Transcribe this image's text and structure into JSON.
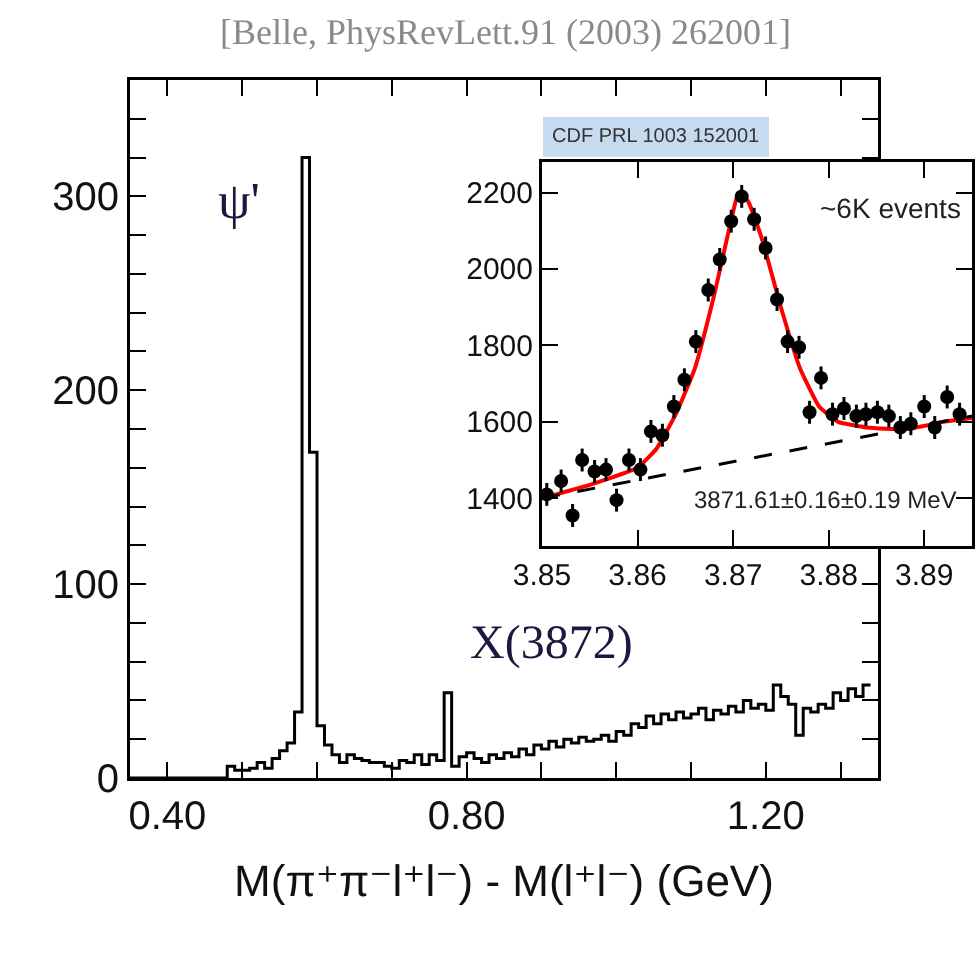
{
  "chart_data": [
    {
      "type": "histogram",
      "xlabel": "M(π⁺π⁻l⁺l⁻) - M(l⁺l⁻) (GeV)",
      "color": "#000000",
      "annotations": [
        "[Belle, PhysRevLett.91 (2003) 262001]",
        "ψ'",
        "X(3872)"
      ],
      "bins": [
        0.35,
        0.36,
        0.37,
        0.38,
        0.39,
        0.4,
        0.41,
        0.42,
        0.43,
        0.44,
        0.45,
        0.46,
        0.47,
        0.48,
        0.49,
        0.5,
        0.51,
        0.52,
        0.53,
        0.54,
        0.55,
        0.56,
        0.57,
        0.58,
        0.59,
        0.6,
        0.61,
        0.62,
        0.63,
        0.64,
        0.65,
        0.66,
        0.67,
        0.68,
        0.69,
        0.7,
        0.71,
        0.72,
        0.73,
        0.74,
        0.75,
        0.76,
        0.77,
        0.78,
        0.79,
        0.8,
        0.81,
        0.82,
        0.83,
        0.84,
        0.85,
        0.86,
        0.87,
        0.88,
        0.89,
        0.9,
        0.91,
        0.92,
        0.93,
        0.94,
        0.95,
        0.96,
        0.97,
        0.98,
        0.99,
        1.0,
        1.01,
        1.02,
        1.03,
        1.04,
        1.05,
        1.06,
        1.07,
        1.08,
        1.09,
        1.1,
        1.11,
        1.12,
        1.13,
        1.14,
        1.15,
        1.16,
        1.17,
        1.18,
        1.19,
        1.2,
        1.21,
        1.22,
        1.23,
        1.24,
        1.25,
        1.26,
        1.27,
        1.28,
        1.29,
        1.3,
        1.31,
        1.32,
        1.33,
        1.34
      ],
      "values": [
        0,
        0,
        0,
        0,
        0,
        0,
        0,
        0,
        0,
        0,
        0,
        0,
        0,
        6,
        4,
        4,
        5,
        8,
        5,
        10,
        14,
        18,
        34,
        320,
        168,
        27,
        17,
        12,
        8,
        12,
        10,
        9,
        8,
        8,
        6,
        5,
        9,
        8,
        12,
        7,
        12,
        9,
        44,
        6,
        11,
        13,
        10,
        8,
        12,
        10,
        13,
        11,
        15,
        12,
        17,
        15,
        19,
        16,
        20,
        18,
        21,
        19,
        20,
        22,
        19,
        24,
        22,
        28,
        26,
        32,
        28,
        33,
        30,
        34,
        31,
        33,
        36,
        30,
        35,
        33,
        37,
        34,
        40,
        36,
        38,
        35,
        48,
        42,
        38,
        22,
        36,
        34,
        38,
        36,
        44,
        40,
        46,
        42,
        48
      ],
      "xlim": [
        0.35,
        1.35
      ],
      "xticks": [
        {
          "value": 0.4,
          "label": "0.40"
        },
        {
          "value": 0.5,
          "label": null
        },
        {
          "value": 0.6,
          "label": null
        },
        {
          "value": 0.7,
          "label": null
        },
        {
          "value": 0.8,
          "label": "0.80"
        },
        {
          "value": 0.9,
          "label": null
        },
        {
          "value": 1.0,
          "label": null
        },
        {
          "value": 1.1,
          "label": null
        },
        {
          "value": 1.2,
          "label": "1.20"
        },
        {
          "value": 1.3,
          "label": null
        }
      ],
      "ylim": [
        0,
        360
      ],
      "yticks": [
        0,
        {
          "value": 20,
          "label": null
        },
        {
          "value": 40,
          "label": null
        },
        {
          "value": 60,
          "label": null
        },
        {
          "value": 80,
          "label": null
        },
        100,
        {
          "value": 120,
          "label": null
        },
        {
          "value": 140,
          "label": null
        },
        {
          "value": 160,
          "label": null
        },
        {
          "value": 180,
          "label": null
        },
        200,
        {
          "value": 220,
          "label": null
        },
        {
          "value": 240,
          "label": null
        },
        {
          "value": 260,
          "label": null
        },
        {
          "value": 280,
          "label": null
        },
        300,
        {
          "value": 320,
          "label": null
        },
        {
          "value": 340,
          "label": null
        }
      ]
    },
    {
      "type": "scatter",
      "annotations": [
        "CDF PRL 1003 152001",
        "~6K events",
        "3871.61±0.16±0.19 MeV"
      ],
      "xlim": [
        3.85,
        3.895
      ],
      "xticks": [
        3.85,
        3.86,
        3.87,
        3.88,
        3.89
      ],
      "ylim": [
        1275,
        2280
      ],
      "yticks": [
        1400,
        1600,
        1800,
        2000,
        2200
      ],
      "series": [
        {
          "marker": "circle",
          "color": "#000000",
          "x": [
            3.8505,
            3.852,
            3.8532,
            3.8542,
            3.8555,
            3.8567,
            3.8578,
            3.8591,
            3.8603,
            3.8614,
            3.8626,
            3.8638,
            3.8649,
            3.8661,
            3.8674,
            3.8686,
            3.8698,
            3.8709,
            3.8722,
            3.8734,
            3.8746,
            3.8757,
            3.8769,
            3.878,
            3.8792,
            3.8804,
            3.8816,
            3.8829,
            3.8839,
            3.8851,
            3.8863,
            3.8875,
            3.8886,
            3.89,
            3.8911,
            3.8924,
            3.8937
          ],
          "values": [
            1410,
            1445,
            1355,
            1500,
            1470,
            1475,
            1395,
            1500,
            1475,
            1575,
            1565,
            1640,
            1710,
            1810,
            1945,
            2025,
            2125,
            2190,
            2130,
            2055,
            1920,
            1810,
            1795,
            1625,
            1715,
            1620,
            1635,
            1615,
            1620,
            1625,
            1615,
            1585,
            1595,
            1640,
            1585,
            1665,
            1620
          ],
          "errors": [
            30,
            30,
            30,
            30,
            30,
            30,
            30,
            30,
            30,
            30,
            30,
            30,
            30,
            30,
            30,
            30,
            30,
            30,
            30,
            30,
            30,
            30,
            30,
            30,
            30,
            30,
            30,
            30,
            30,
            30,
            30,
            30,
            30,
            30,
            30,
            30,
            30
          ]
        },
        {
          "type": "line",
          "color": "#ff0000",
          "line_style": "solid",
          "x": [
            3.85,
            3.855,
            3.86,
            3.862,
            3.864,
            3.866,
            3.868,
            3.869,
            3.87,
            3.8705,
            3.8715,
            3.873,
            3.875,
            3.877,
            3.879,
            3.881,
            3.884,
            3.888,
            3.892,
            3.895
          ],
          "values": [
            1400,
            1435,
            1480,
            1530,
            1620,
            1740,
            1930,
            2040,
            2150,
            2195,
            2180,
            2080,
            1900,
            1740,
            1640,
            1600,
            1585,
            1580,
            1600,
            1610
          ]
        },
        {
          "type": "line",
          "color": "#000000",
          "line_style": "dashed",
          "x": [
            3.85,
            3.895
          ],
          "values": [
            1400,
            1615
          ]
        }
      ]
    }
  ]
}
